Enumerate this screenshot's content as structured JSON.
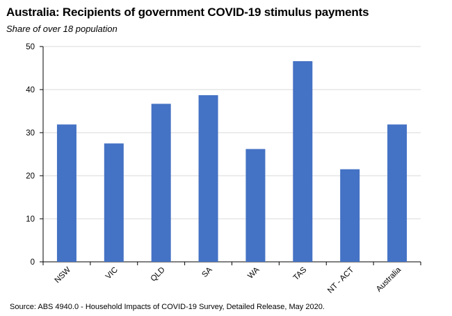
{
  "header": {
    "title": "Australia: Recipients of government COVID-19 stimulus payments",
    "subtitle": "Share of over 18 population"
  },
  "footer": {
    "source": "Source: ABS 4940.0 - Household Impacts of COVID-19 Survey, Detailed Release, May 2020."
  },
  "colors": {
    "bar": "#4472C4",
    "grid": "#D9D9D9",
    "axis": "#000000"
  },
  "chart_data": {
    "type": "bar",
    "title": "Australia: Recipients of government COVID-19 stimulus payments",
    "subtitle": "Share of over 18 population",
    "categories": [
      "NSW",
      "VIC",
      "QLD",
      "SA",
      "WA",
      "TAS",
      "NT - ACT",
      "Australia"
    ],
    "values": [
      31.9,
      27.5,
      36.7,
      38.7,
      26.2,
      46.6,
      21.5,
      31.9
    ],
    "ylim": [
      0,
      50
    ],
    "yticks": [
      0,
      10,
      20,
      30,
      40,
      50
    ],
    "xlabel": "",
    "ylabel": "",
    "grid": true,
    "legend": "none"
  }
}
